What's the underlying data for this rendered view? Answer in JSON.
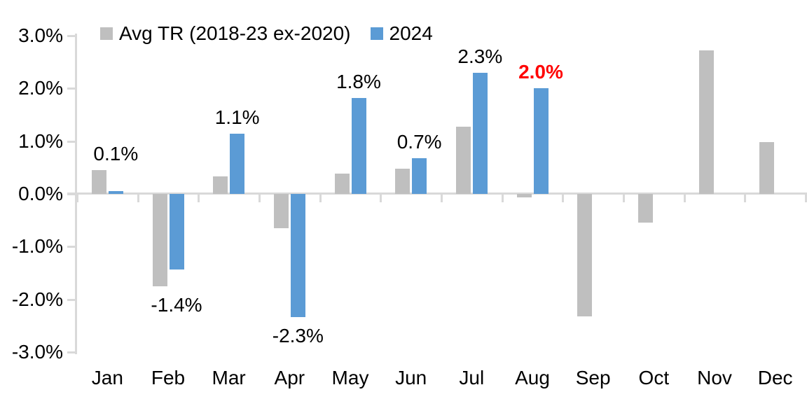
{
  "chart_data": {
    "type": "bar",
    "title": "",
    "categories": [
      "Jan",
      "Feb",
      "Mar",
      "Apr",
      "May",
      "Jun",
      "Jul",
      "Aug",
      "Sep",
      "Oct",
      "Nov",
      "Dec"
    ],
    "series": [
      {
        "name": "Avg TR (2018-23 ex-2020)",
        "color": "#bfbfbf",
        "values": [
          0.45,
          -1.75,
          0.33,
          -0.65,
          0.39,
          0.48,
          1.28,
          -0.07,
          -2.32,
          -0.55,
          2.72,
          0.98
        ]
      },
      {
        "name": "2024",
        "color": "#5b9bd5",
        "values": [
          0.05,
          -1.43,
          1.14,
          -2.33,
          1.82,
          0.68,
          2.3,
          2.0,
          null,
          null,
          null,
          null
        ]
      }
    ],
    "data_labels": [
      {
        "category": "Jan",
        "text": "0.1%",
        "color": "#000000",
        "bold": false
      },
      {
        "category": "Feb",
        "text": "-1.4%",
        "color": "#000000",
        "bold": false
      },
      {
        "category": "Mar",
        "text": "1.1%",
        "color": "#000000",
        "bold": false
      },
      {
        "category": "Apr",
        "text": "-2.3%",
        "color": "#000000",
        "bold": false
      },
      {
        "category": "May",
        "text": "1.8%",
        "color": "#000000",
        "bold": false
      },
      {
        "category": "Jun",
        "text": "0.7%",
        "color": "#000000",
        "bold": false
      },
      {
        "category": "Jul",
        "text": "2.3%",
        "color": "#000000",
        "bold": false
      },
      {
        "category": "Aug",
        "text": "2.0%",
        "color": "#ff0000",
        "bold": true
      }
    ],
    "xlabel": "",
    "ylabel": "",
    "ylim": [
      -3,
      3
    ],
    "yticks": [
      {
        "value": 3,
        "label": "3.0%"
      },
      {
        "value": 2,
        "label": "2.0%"
      },
      {
        "value": 1,
        "label": "1.0%"
      },
      {
        "value": 0,
        "label": "0.0%"
      },
      {
        "value": -1,
        "label": "-1.0%"
      },
      {
        "value": -2,
        "label": "-2.0%"
      },
      {
        "value": -3,
        "label": "-3.0%"
      }
    ],
    "grid": false,
    "legend_position": "top",
    "axis_color": "#d9d9d9",
    "text_color": "#000000",
    "background_color": "#ffffff"
  }
}
